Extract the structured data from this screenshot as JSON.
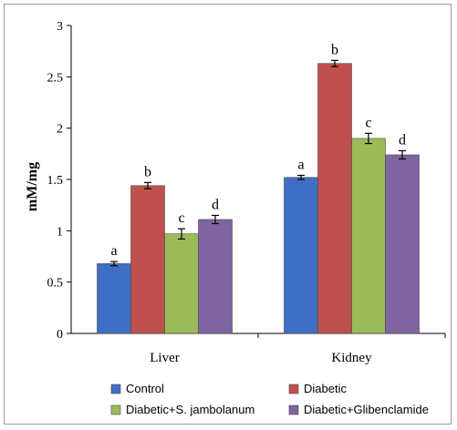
{
  "chart_data": {
    "type": "bar",
    "title": "",
    "xlabel": "",
    "ylabel": "mM/mg",
    "ylim": [
      0,
      3
    ],
    "yticks": [
      0,
      0.5,
      1,
      1.5,
      2,
      2.5,
      3
    ],
    "ytick_labels": [
      "0",
      "0.5",
      "1",
      "1.5",
      "2",
      "2.5",
      "3"
    ],
    "grid": false,
    "legend_position": "bottom",
    "categories": [
      "Liver",
      "Kidney"
    ],
    "series": [
      {
        "name": "Control",
        "color": "#3f6fc4",
        "values": [
          0.68,
          1.52
        ],
        "errors": [
          0.02,
          0.02
        ],
        "labels": [
          "a",
          "a"
        ]
      },
      {
        "name": "Diabetic",
        "color": "#c0504d",
        "values": [
          1.44,
          2.63
        ],
        "errors": [
          0.03,
          0.03
        ],
        "labels": [
          "b",
          "b"
        ]
      },
      {
        "name": "Diabetic+S. jambolanum",
        "color": "#9bbb59",
        "values": [
          0.97,
          1.9
        ],
        "errors": [
          0.05,
          0.05
        ],
        "labels": [
          "c",
          "c"
        ]
      },
      {
        "name": "Diabetic+Glibenclamide",
        "color": "#8064a2",
        "values": [
          1.11,
          1.74
        ],
        "errors": [
          0.04,
          0.04
        ],
        "labels": [
          "d",
          "d"
        ]
      }
    ]
  }
}
